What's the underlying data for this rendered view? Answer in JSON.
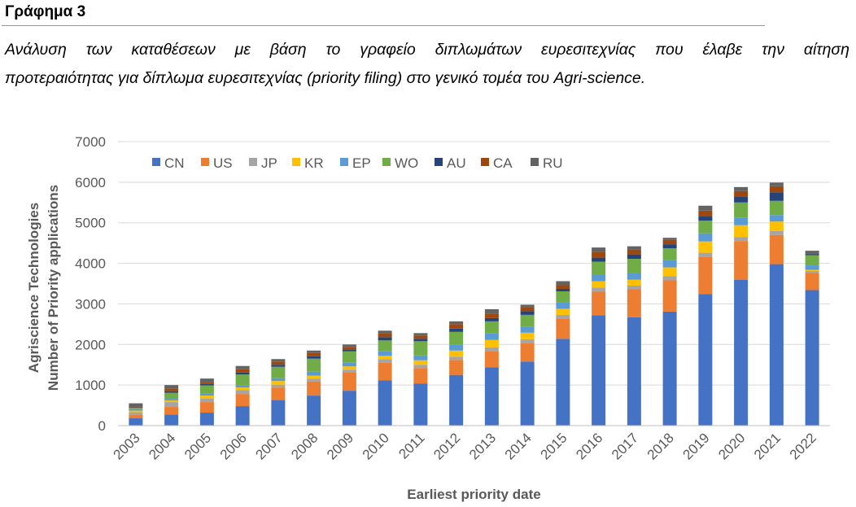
{
  "heading": "Γράφημα 3",
  "caption": {
    "line1": "Ανάλυση των καταθέσεων με βάση το γραφείο διπλωμάτων ευρεσιτεχνίας που έλαβε την αίτηση",
    "line2": "προτεραιότητας για δίπλωμα ευρεσιτεχνίας (priority filing) στο γενικό τομέα του Agri-science."
  },
  "chart_data": {
    "type": "bar",
    "stacked": true,
    "title": "",
    "xlabel": "Earliest priority date",
    "ylabel_lines": [
      "Agriscience Technologies",
      "Number of Priority applications"
    ],
    "ylim": [
      0,
      7000
    ],
    "yticks": [
      0,
      1000,
      2000,
      3000,
      4000,
      5000,
      6000,
      7000
    ],
    "grid": true,
    "legend_position": "top-left",
    "categories": [
      "2003",
      "2004",
      "2005",
      "2006",
      "2007",
      "2008",
      "2009",
      "2010",
      "2011",
      "2012",
      "2013",
      "2014",
      "2015",
      "2016",
      "2017",
      "2018",
      "2019",
      "2020",
      "2021",
      "2022"
    ],
    "series": [
      {
        "name": "CN",
        "color": "#4472c4",
        "values": [
          180,
          270,
          320,
          480,
          630,
          740,
          860,
          1120,
          1040,
          1250,
          1440,
          1580,
          2140,
          2720,
          2670,
          2810,
          3240,
          3590,
          3980,
          3340
        ]
      },
      {
        "name": "US",
        "color": "#ed7d31",
        "values": [
          80,
          190,
          260,
          300,
          310,
          350,
          460,
          440,
          380,
          370,
          400,
          460,
          500,
          580,
          690,
          770,
          920,
          960,
          720,
          420
        ]
      },
      {
        "name": "JP",
        "color": "#a5a5a5",
        "values": [
          70,
          120,
          90,
          100,
          70,
          70,
          60,
          80,
          80,
          80,
          90,
          90,
          90,
          100,
          90,
          100,
          100,
          100,
          100,
          50
        ]
      },
      {
        "name": "KR",
        "color": "#ffc000",
        "values": [
          40,
          40,
          70,
          60,
          90,
          70,
          80,
          80,
          110,
          150,
          180,
          160,
          150,
          160,
          150,
          220,
          280,
          290,
          230,
          30
        ]
      },
      {
        "name": "EP",
        "color": "#5b9bd5",
        "values": [
          40,
          40,
          50,
          60,
          70,
          100,
          90,
          120,
          120,
          150,
          160,
          140,
          150,
          160,
          170,
          190,
          200,
          180,
          160,
          110
        ]
      },
      {
        "name": "WO",
        "color": "#70ad47",
        "values": [
          30,
          150,
          200,
          260,
          280,
          320,
          280,
          260,
          350,
          310,
          300,
          300,
          280,
          320,
          340,
          280,
          310,
          380,
          350,
          250
        ]
      },
      {
        "name": "AU",
        "color": "#264478",
        "values": [
          10,
          40,
          40,
          50,
          50,
          60,
          50,
          80,
          60,
          80,
          80,
          90,
          60,
          100,
          110,
          100,
          120,
          150,
          210,
          30
        ]
      },
      {
        "name": "CA",
        "color": "#9e480e",
        "values": [
          20,
          60,
          50,
          80,
          80,
          80,
          60,
          100,
          80,
          110,
          110,
          100,
          90,
          140,
          120,
          110,
          130,
          130,
          150,
          20
        ]
      },
      {
        "name": "RU",
        "color": "#636363",
        "values": [
          80,
          90,
          80,
          80,
          60,
          60,
          60,
          60,
          60,
          70,
          110,
          60,
          100,
          110,
          80,
          50,
          120,
          100,
          90,
          60
        ]
      }
    ]
  }
}
